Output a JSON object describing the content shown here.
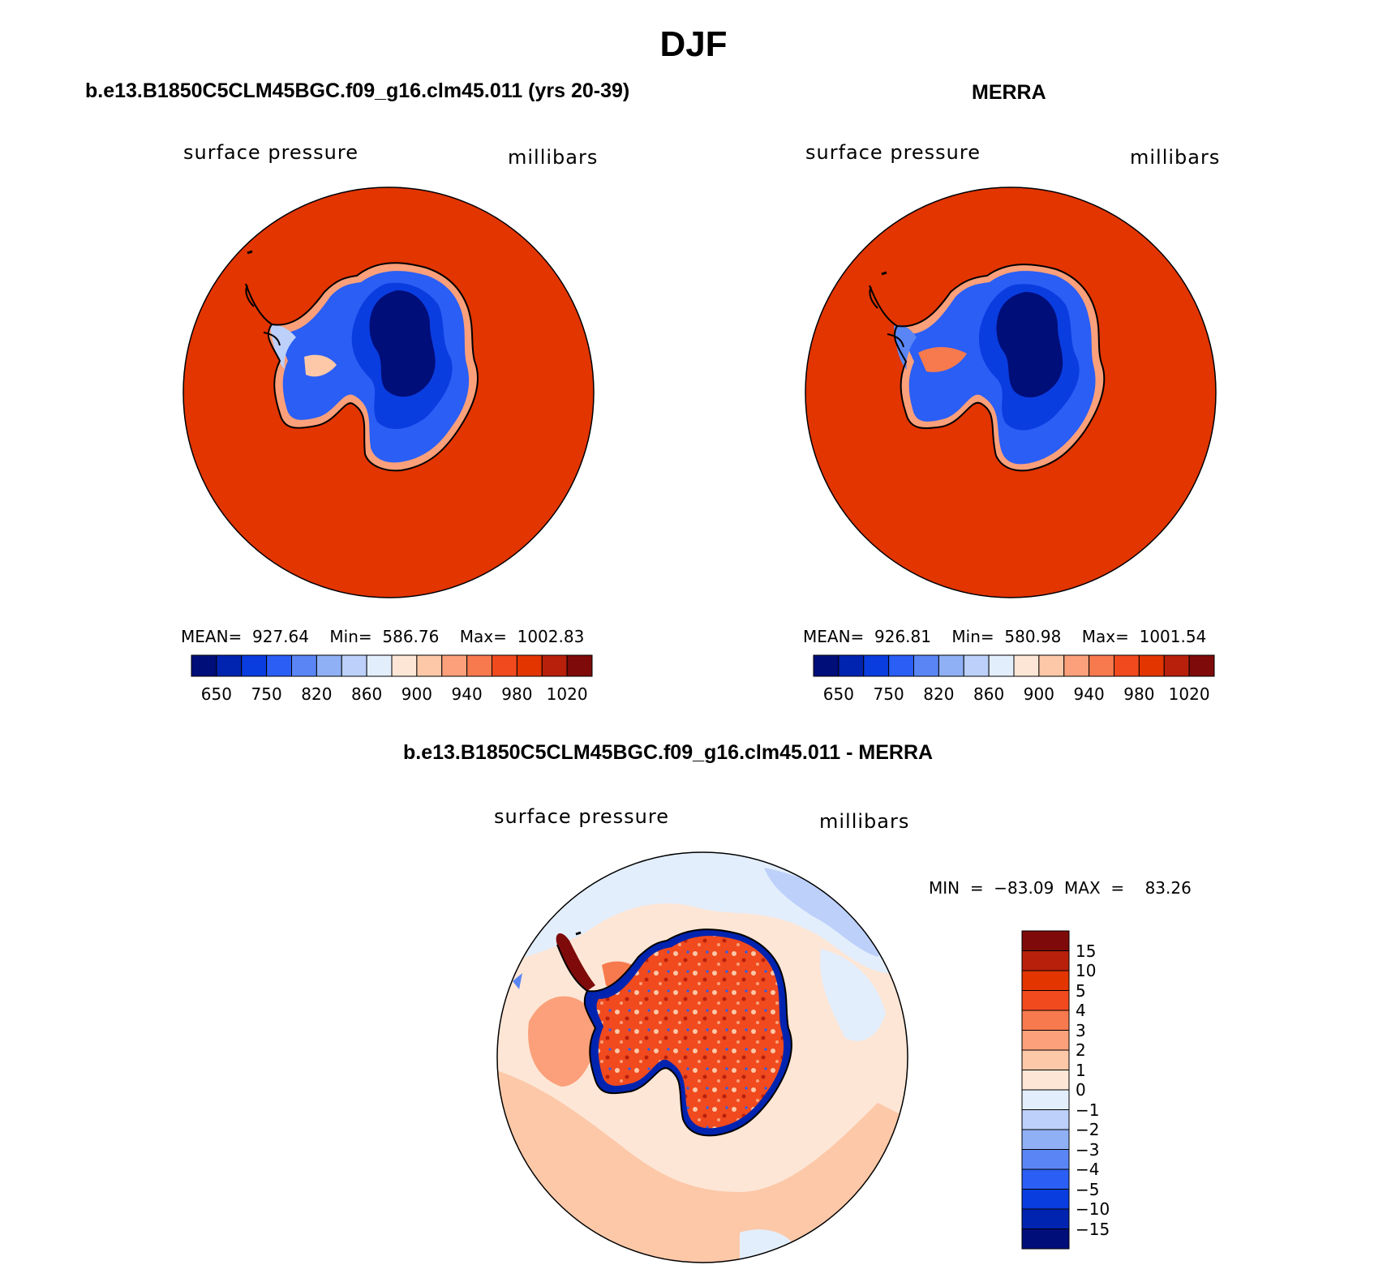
{
  "title": "DJF",
  "panels": [
    {
      "title": "b.e13.B1850C5CLM45BGC.f09_g16.clm45.011 (yrs 20-39)",
      "left_label": "surface pressure",
      "right_label": "millibars",
      "stats": "MEAN=  927.64    Min=  586.76    Max=  1002.83"
    },
    {
      "title": "MERRA",
      "left_label": "surface pressure",
      "right_label": "millibars",
      "stats": "MEAN=  926.81    Min=  580.98    Max=  1001.54"
    },
    {
      "title": "b.e13.B1850C5CLM45BGC.f09_g16.clm45.011 - MERRA",
      "left_label": "surface pressure",
      "right_label": "millibars",
      "stats": "MIN  =  −83.09  MAX  =    83.26"
    }
  ],
  "colorbar_abs": {
    "colors": [
      "#000e7a",
      "#0024b0",
      "#0a3de0",
      "#2a5ef5",
      "#5a86f5",
      "#8fb0f5",
      "#bcd0fa",
      "#e3eefc",
      "#fde6d6",
      "#fcc8a8",
      "#fba07a",
      "#f77a4e",
      "#f04a1e",
      "#e23500",
      "#b8200c",
      "#7e0a0a"
    ],
    "ticks": [
      "650",
      "750",
      "820",
      "860",
      "900",
      "940",
      "980",
      "1020"
    ]
  },
  "colorbar_diff": {
    "colors": [
      "#000e7a",
      "#0024b0",
      "#0a3de0",
      "#2a5ef5",
      "#5a86f5",
      "#8fb0f5",
      "#bcd0fa",
      "#e3eefc",
      "#fde6d6",
      "#fcc8a8",
      "#fba07a",
      "#f77a4e",
      "#f04a1e",
      "#e23500",
      "#b8200c",
      "#7e0a0a"
    ],
    "ticks": [
      "15",
      "10",
      "5",
      "4",
      "3",
      "2",
      "1",
      "0",
      "−1",
      "−2",
      "−3",
      "−4",
      "−5",
      "−10",
      "−15"
    ]
  }
}
